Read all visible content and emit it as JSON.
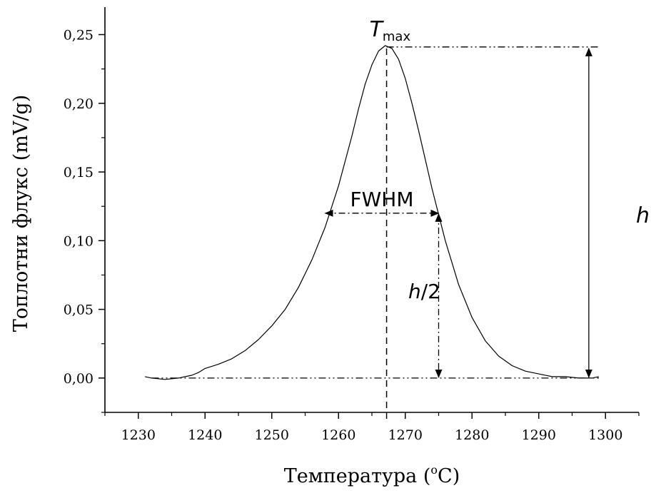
{
  "chart_data": {
    "type": "line",
    "title": "",
    "xlabel": "Температура (",
    "xlabel_sup": "o",
    "xlabel_unit": "C)",
    "ylabel": "Топлотни флукс (mV/g)",
    "xlim": [
      1225,
      1305
    ],
    "ylim": [
      -0.025,
      0.27
    ],
    "x_ticks": [
      1230,
      1240,
      1250,
      1260,
      1270,
      1280,
      1290,
      1300
    ],
    "x_tick_labels": [
      "1230",
      "1240",
      "1250",
      "1260",
      "1270",
      "1280",
      "1290",
      "1300"
    ],
    "y_ticks": [
      0.0,
      0.05,
      0.1,
      0.15,
      0.2,
      0.25
    ],
    "y_tick_labels": [
      "0,00",
      "0,05",
      "0,10",
      "0,15",
      "0,20",
      "0,25"
    ],
    "grid": false,
    "series": [
      {
        "color": "#000000",
        "x": [
          1231,
          1232,
          1234,
          1236,
          1238,
          1239,
          1240,
          1242,
          1244,
          1246,
          1248,
          1250,
          1252,
          1254,
          1256,
          1258,
          1260,
          1262,
          1263,
          1264,
          1265,
          1266,
          1267,
          1268,
          1269,
          1270,
          1271,
          1272,
          1274,
          1276,
          1278,
          1280,
          1282,
          1284,
          1286,
          1288,
          1290,
          1292,
          1294,
          1296,
          1297,
          1298,
          1299
        ],
        "y": [
          0.001,
          0.0,
          -0.001,
          0.0,
          0.002,
          0.004,
          0.007,
          0.01,
          0.014,
          0.02,
          0.028,
          0.038,
          0.05,
          0.066,
          0.086,
          0.11,
          0.14,
          0.176,
          0.196,
          0.214,
          0.228,
          0.238,
          0.242,
          0.24,
          0.232,
          0.218,
          0.2,
          0.18,
          0.138,
          0.1,
          0.068,
          0.044,
          0.027,
          0.016,
          0.009,
          0.005,
          0.003,
          0.001,
          0.001,
          0.0,
          0.0,
          0.0,
          0.001
        ]
      }
    ],
    "annotations": {
      "tmax_symbol": "T",
      "tmax_subscript": "max",
      "tmax_x": 1267.2,
      "peak_y": 0.241,
      "baseline_y": 0.0,
      "baseline_x_start": 1232,
      "baseline_x_end": 1299,
      "peak_line_x_end": 1299,
      "fwhm_label": "FWHM",
      "fwhm_y": 0.12,
      "fwhm_x_left": 1258,
      "fwhm_x_right": 1275,
      "half_height_label_var": "h",
      "half_height_label_rest": "/2",
      "height_label": "h",
      "height_arrow_x": 1297.5
    }
  }
}
